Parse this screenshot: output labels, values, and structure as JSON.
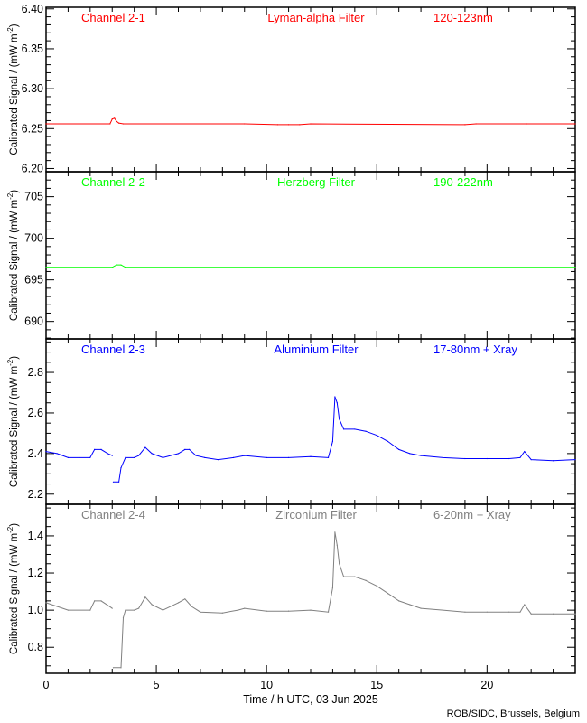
{
  "chart_data": [
    {
      "type": "line",
      "title": "Channel 2-1",
      "filter": "Lyman-alpha Filter",
      "band": "120-123nm",
      "color": "#ff0000",
      "ylabel_prefix": "Calibrated Signal  /  (mW  m",
      "ylabel_sup": "-2",
      "ylabel_suffix": ")",
      "ylim": [
        6.196,
        6.402
      ],
      "yticks": [
        6.2,
        6.25,
        6.3,
        6.35,
        6.4
      ],
      "ytick_labels": [
        "6.20",
        "6.25",
        "6.30",
        "6.35",
        "6.40"
      ],
      "yminor": 0.01,
      "x": [
        0,
        2.9,
        3.0,
        3.1,
        3.2,
        3.3,
        3.5,
        9.0,
        10.5,
        11.0,
        11.5,
        12.0,
        19.0,
        19.5,
        21.8,
        24
      ],
      "y": [
        6.256,
        6.256,
        6.262,
        6.263,
        6.259,
        6.257,
        6.256,
        6.256,
        6.255,
        6.255,
        6.255,
        6.256,
        6.255,
        6.256,
        6.256,
        6.256
      ]
    },
    {
      "type": "line",
      "title": "Channel 2-2",
      "filter": "Herzberg Filter",
      "band": "190-222nm",
      "color": "#00ff00",
      "ylabel_prefix": "Calibrated Signal  /  (mW  m",
      "ylabel_sup": "-2",
      "ylabel_suffix": ")",
      "ylim": [
        687.9,
        708.0
      ],
      "yticks": [
        690,
        695,
        700,
        705
      ],
      "ytick_labels": [
        "690",
        "695",
        "700",
        "705"
      ],
      "yminor": 1,
      "x": [
        0,
        3.0,
        3.2,
        3.4,
        3.6,
        24
      ],
      "y": [
        696.5,
        696.5,
        696.8,
        696.8,
        696.5,
        696.5
      ]
    },
    {
      "type": "line",
      "title": "Channel 2-3",
      "filter": "Aluminium Filter",
      "band": "17-80nm + Xray",
      "color": "#0000ff",
      "ylabel_prefix": "Calibrated Signal  /  (mW  m",
      "ylabel_sup": "-2",
      "ylabel_suffix": ")",
      "ylim": [
        2.15,
        2.965
      ],
      "yticks": [
        2.2,
        2.4,
        2.6,
        2.8
      ],
      "ytick_labels": [
        "2.2",
        "2.4",
        "2.6",
        "2.8"
      ],
      "yminor": 0.05,
      "x": [
        0,
        0.5,
        1,
        1.5,
        2,
        2.2,
        2.5,
        2.8,
        3.0,
        null,
        3.05,
        3.3,
        3.4,
        3.6,
        4,
        4.2,
        4.5,
        4.8,
        5.3,
        6,
        6.3,
        6.5,
        6.8,
        7.2,
        7.8,
        8.5,
        9,
        10,
        11,
        12,
        12.8,
        13.0,
        13.1,
        13.2,
        13.3,
        13.5,
        14,
        14.5,
        15,
        15.5,
        16,
        16.5,
        17,
        18,
        19,
        20,
        21,
        21.5,
        21.7,
        22,
        23,
        24
      ],
      "y": [
        2.41,
        2.4,
        2.38,
        2.38,
        2.38,
        2.42,
        2.42,
        2.4,
        2.39,
        null,
        2.26,
        2.26,
        2.33,
        2.38,
        2.38,
        2.39,
        2.43,
        2.4,
        2.38,
        2.4,
        2.42,
        2.42,
        2.39,
        2.38,
        2.37,
        2.38,
        2.39,
        2.38,
        2.38,
        2.385,
        2.38,
        2.46,
        2.68,
        2.65,
        2.57,
        2.52,
        2.52,
        2.51,
        2.49,
        2.46,
        2.42,
        2.4,
        2.39,
        2.38,
        2.375,
        2.375,
        2.375,
        2.38,
        2.41,
        2.37,
        2.365,
        2.37
      ]
    },
    {
      "type": "line",
      "title": "Channel 2-4",
      "filter": "Zirconium Filter",
      "band": "6-20nm + Xray",
      "color": "#808080",
      "ylabel_prefix": "Calibrated Signal  /  (mW  m",
      "ylabel_sup": "-2",
      "ylabel_suffix": ")",
      "ylim": [
        0.66,
        1.57
      ],
      "yticks": [
        0.8,
        1.0,
        1.2,
        1.4
      ],
      "ytick_labels": [
        "0.8",
        "1.0",
        "1.2",
        "1.4"
      ],
      "yminor": 0.05,
      "x": [
        0,
        0.5,
        1,
        2,
        2.2,
        2.5,
        3.0,
        null,
        3.05,
        3.4,
        3.5,
        3.6,
        4,
        4.2,
        4.5,
        4.8,
        5.3,
        6,
        6.3,
        6.6,
        7,
        8,
        8.7,
        9,
        10,
        11,
        12,
        12.8,
        13.0,
        13.1,
        13.2,
        13.3,
        13.5,
        14,
        14.5,
        15,
        15.5,
        16,
        16.5,
        17,
        18,
        19,
        20,
        21,
        21.5,
        21.7,
        22,
        23,
        24
      ],
      "y": [
        1.04,
        1.02,
        1.0,
        1.0,
        1.05,
        1.05,
        1.01,
        null,
        0.69,
        0.69,
        0.96,
        1.0,
        1.0,
        1.01,
        1.07,
        1.03,
        1.0,
        1.04,
        1.06,
        1.02,
        0.99,
        0.985,
        1.0,
        1.01,
        0.995,
        0.995,
        1.0,
        0.99,
        1.12,
        1.42,
        1.35,
        1.25,
        1.18,
        1.18,
        1.16,
        1.13,
        1.09,
        1.05,
        1.03,
        1.01,
        1.0,
        0.99,
        0.99,
        0.99,
        0.99,
        1.03,
        0.98,
        0.98,
        0.98
      ]
    }
  ],
  "xaxis": {
    "xlim": [
      0,
      24
    ],
    "xticks": [
      0,
      5,
      10,
      15,
      20
    ],
    "xtick_labels": [
      "0",
      "5",
      "10",
      "15",
      "20"
    ],
    "xminor": 1,
    "xlabel": "Time / h UTC, 03 Jun 2025"
  },
  "credit": "ROB/SIDC, Brussels, Belgium"
}
